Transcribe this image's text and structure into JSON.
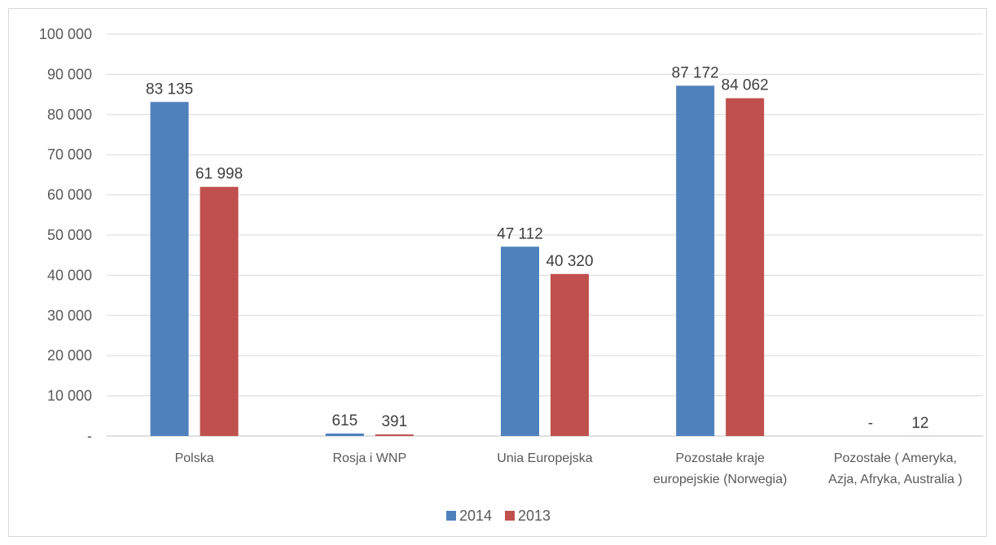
{
  "chart_data": {
    "type": "bar",
    "title": "",
    "xlabel": "",
    "ylabel": "",
    "categories": [
      [
        "Polska"
      ],
      [
        "Rosja i WNP"
      ],
      [
        "Unia Europejska"
      ],
      [
        "Pozostałe kraje",
        "europejskie (Norwegia)"
      ],
      [
        "Pozostałe ( Ameryka,",
        "Azja, Afryka, Australia )"
      ]
    ],
    "series": [
      {
        "name": "2014",
        "color": "#4f81bd",
        "values": [
          83135,
          615,
          47112,
          87172,
          0
        ],
        "labels": [
          "83 135",
          "615",
          "47 112",
          "87 172",
          "-"
        ]
      },
      {
        "name": "2013",
        "color": "#c0504d",
        "values": [
          61998,
          391,
          40320,
          84062,
          12
        ],
        "labels": [
          "61 998",
          "391",
          "40 320",
          "84 062",
          "12"
        ]
      }
    ],
    "ylim": [
      0,
      100000
    ],
    "yticks": [
      {
        "value": 0,
        "label": "-"
      },
      {
        "value": 10000,
        "label": "10 000"
      },
      {
        "value": 20000,
        "label": "20 000"
      },
      {
        "value": 30000,
        "label": "30 000"
      },
      {
        "value": 40000,
        "label": "40 000"
      },
      {
        "value": 50000,
        "label": "50 000"
      },
      {
        "value": 60000,
        "label": "60 000"
      },
      {
        "value": 70000,
        "label": "70 000"
      },
      {
        "value": 80000,
        "label": "80 000"
      },
      {
        "value": 90000,
        "label": "90 000"
      },
      {
        "value": 100000,
        "label": "100 000"
      }
    ],
    "grid": true,
    "legend_position": "bottom",
    "colors": {
      "gridline": "#d9d9d9",
      "axis": "#bfbfbf"
    }
  }
}
